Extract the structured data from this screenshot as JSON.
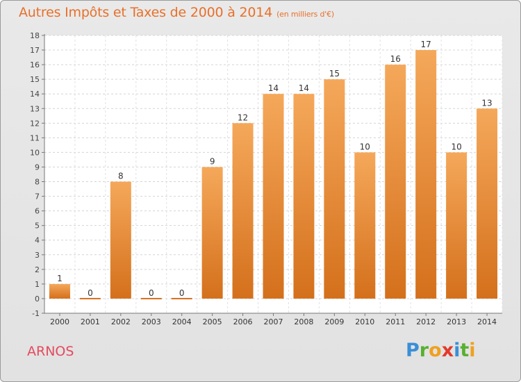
{
  "title": "Autres Impôts et Taxes de 2000 à 2014",
  "subtitle": "(en milliers d'€)",
  "footer_label": "ARNOS",
  "logo": {
    "letters": [
      "P",
      "r",
      "o",
      "x",
      "i",
      "t",
      "i"
    ],
    "colors": [
      "#3a8fd6",
      "#58b030",
      "#f0a020",
      "#e23a2c",
      "#3a8fd6",
      "#58b030",
      "#f0a020"
    ]
  },
  "colors": {
    "bar_top": "#f5a85a",
    "bar_bottom": "#d4701c",
    "title": "#e8702a",
    "footer": "#e44a5e"
  },
  "chart_data": {
    "type": "bar",
    "title": "Autres Impôts et Taxes de 2000 à 2014",
    "subtitle": "(en milliers d'€)",
    "categories": [
      "2000",
      "2001",
      "2002",
      "2003",
      "2004",
      "2005",
      "2006",
      "2007",
      "2008",
      "2009",
      "2010",
      "2011",
      "2012",
      "2013",
      "2014"
    ],
    "values": [
      1,
      0,
      8,
      0,
      0,
      9,
      12,
      14,
      14,
      15,
      10,
      16,
      17,
      10,
      13
    ],
    "value_labels": [
      "1",
      "0",
      "8",
      "0",
      "0",
      "9",
      "12",
      "14",
      "14",
      "15",
      "10",
      "16",
      "17",
      "10",
      "13"
    ],
    "y_ticks": [
      "-1",
      "0",
      "1",
      "2",
      "3",
      "4",
      "5",
      "6",
      "7",
      "8",
      "9",
      "10",
      "11",
      "12",
      "13",
      "14",
      "15",
      "16",
      "17",
      "18"
    ],
    "ylim": [
      -1,
      18
    ],
    "grid": true
  }
}
